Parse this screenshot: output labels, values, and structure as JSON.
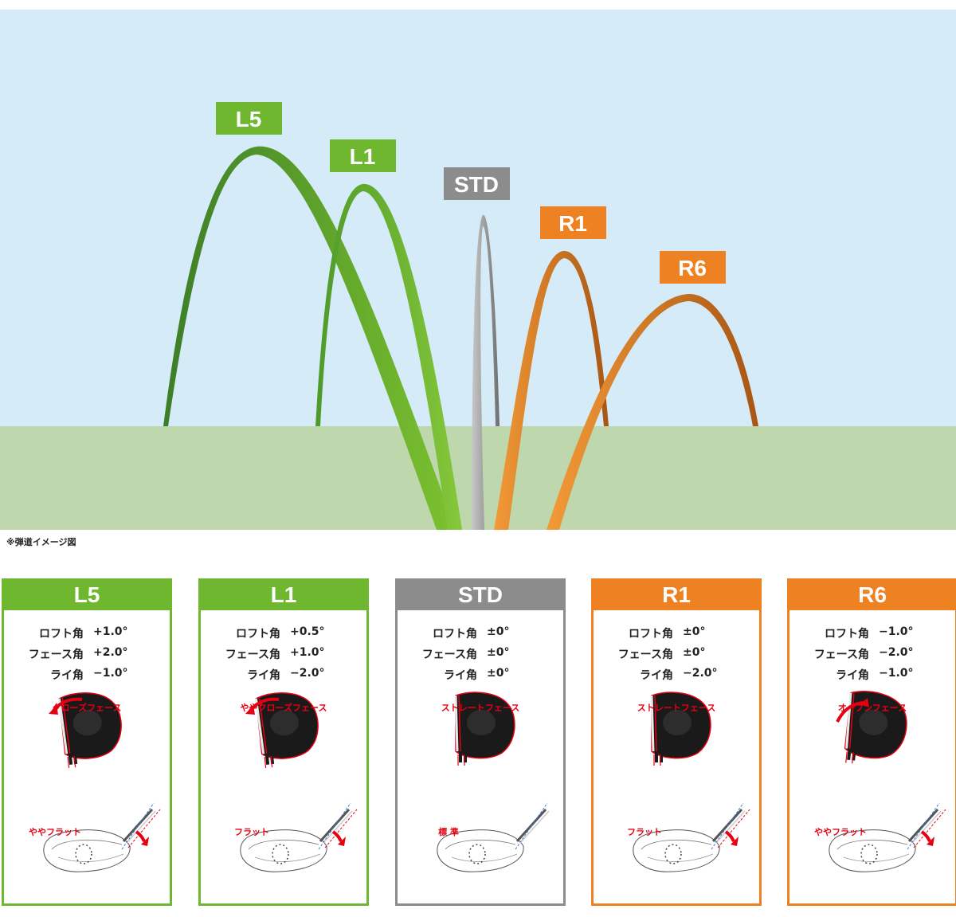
{
  "colors": {
    "sky": "#d5ebf7",
    "ground": "#bed7ac",
    "green_light": "#6fb72e",
    "green_dark": "#3c7d27",
    "gray": "#8c8c8c",
    "orange_light": "#ee8121",
    "orange_dark": "#a85614",
    "accent_red": "#e60012"
  },
  "trajectories": [
    {
      "key": "L5",
      "label": "L5"
    },
    {
      "key": "L1",
      "label": "L1"
    },
    {
      "key": "STD",
      "label": "STD"
    },
    {
      "key": "R1",
      "label": "R1"
    },
    {
      "key": "R6",
      "label": "R6"
    }
  ],
  "footnote": "※弾道イメージ図",
  "cards": [
    {
      "title": "L5",
      "color": "#6fb72e",
      "specs": [
        {
          "k": "ロフト角",
          "v": "+1.0°"
        },
        {
          "k": "フェース角",
          "v": "+2.0°"
        },
        {
          "k": "ライ角",
          "v": "−1.0°"
        }
      ],
      "face": "クローズフェース",
      "lie": "ややフラット",
      "face_arrow": "close",
      "lie_arrow": true
    },
    {
      "title": "L1",
      "color": "#6fb72e",
      "specs": [
        {
          "k": "ロフト角",
          "v": "+0.5°"
        },
        {
          "k": "フェース角",
          "v": "+1.0°"
        },
        {
          "k": "ライ角",
          "v": "−2.0°"
        }
      ],
      "face": "ややクローズフェース",
      "lie": "フラット",
      "face_arrow": "close",
      "lie_arrow": true
    },
    {
      "title": "STD",
      "color": "#8c8c8c",
      "specs": [
        {
          "k": "ロフト角",
          "v": "±0°"
        },
        {
          "k": "フェース角",
          "v": "±0°"
        },
        {
          "k": "ライ角",
          "v": "±0°"
        }
      ],
      "face": "ストレートフェース",
      "lie": "標 準",
      "face_arrow": "none",
      "lie_arrow": false
    },
    {
      "title": "R1",
      "color": "#ee8121",
      "specs": [
        {
          "k": "ロフト角",
          "v": "±0°"
        },
        {
          "k": "フェース角",
          "v": "±0°"
        },
        {
          "k": "ライ角",
          "v": "−2.0°"
        }
      ],
      "face": "ストレートフェース",
      "lie": "フラット",
      "face_arrow": "none",
      "lie_arrow": true
    },
    {
      "title": "R6",
      "color": "#ee8121",
      "specs": [
        {
          "k": "ロフト角",
          "v": "−1.0°"
        },
        {
          "k": "フェース角",
          "v": "−2.0°"
        },
        {
          "k": "ライ角",
          "v": "−1.0°"
        }
      ],
      "face": "オープンフェース",
      "lie": "ややフラット",
      "face_arrow": "open",
      "lie_arrow": true
    }
  ]
}
